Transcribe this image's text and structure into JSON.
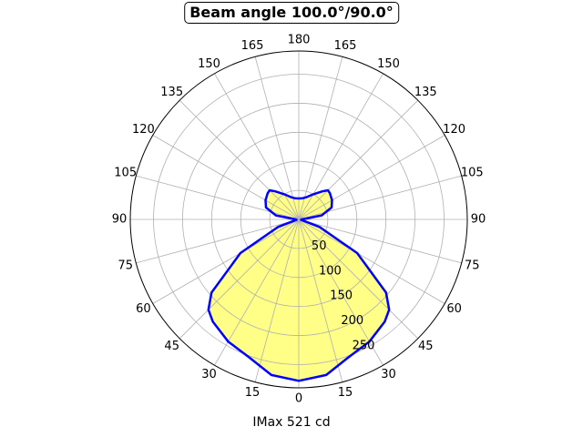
{
  "chart_data": {
    "type": "polar",
    "title": "Beam angle 100.0°/90.0°",
    "xlabel": "IMax 521 cd",
    "unit": "cd",
    "r_ticks": [
      50,
      100,
      150,
      200,
      250
    ],
    "rlim": [
      0,
      290
    ],
    "angle_labels": [
      "180",
      "165",
      "150",
      "135",
      "120",
      "105",
      "90",
      "75",
      "60",
      "45",
      "30",
      "15",
      "0",
      "15",
      "30",
      "45",
      "60",
      "75",
      "90",
      "105",
      "120",
      "135",
      "150",
      "165"
    ],
    "grid": true,
    "series": [
      {
        "line_color": "#0000ff",
        "fill_color": "#ffff88",
        "angles_deg": [
          0,
          10,
          20,
          30,
          40,
          45,
          50,
          60,
          70,
          80,
          90,
          100,
          110,
          120,
          130,
          135,
          140,
          150,
          160,
          170,
          180
        ],
        "values": [
          278,
          272,
          252,
          243,
          230,
          220,
          196,
          116,
          38,
          4,
          5,
          40,
          60,
          66,
          70,
          71,
          63,
          50,
          41,
          37,
          36
        ]
      }
    ]
  }
}
